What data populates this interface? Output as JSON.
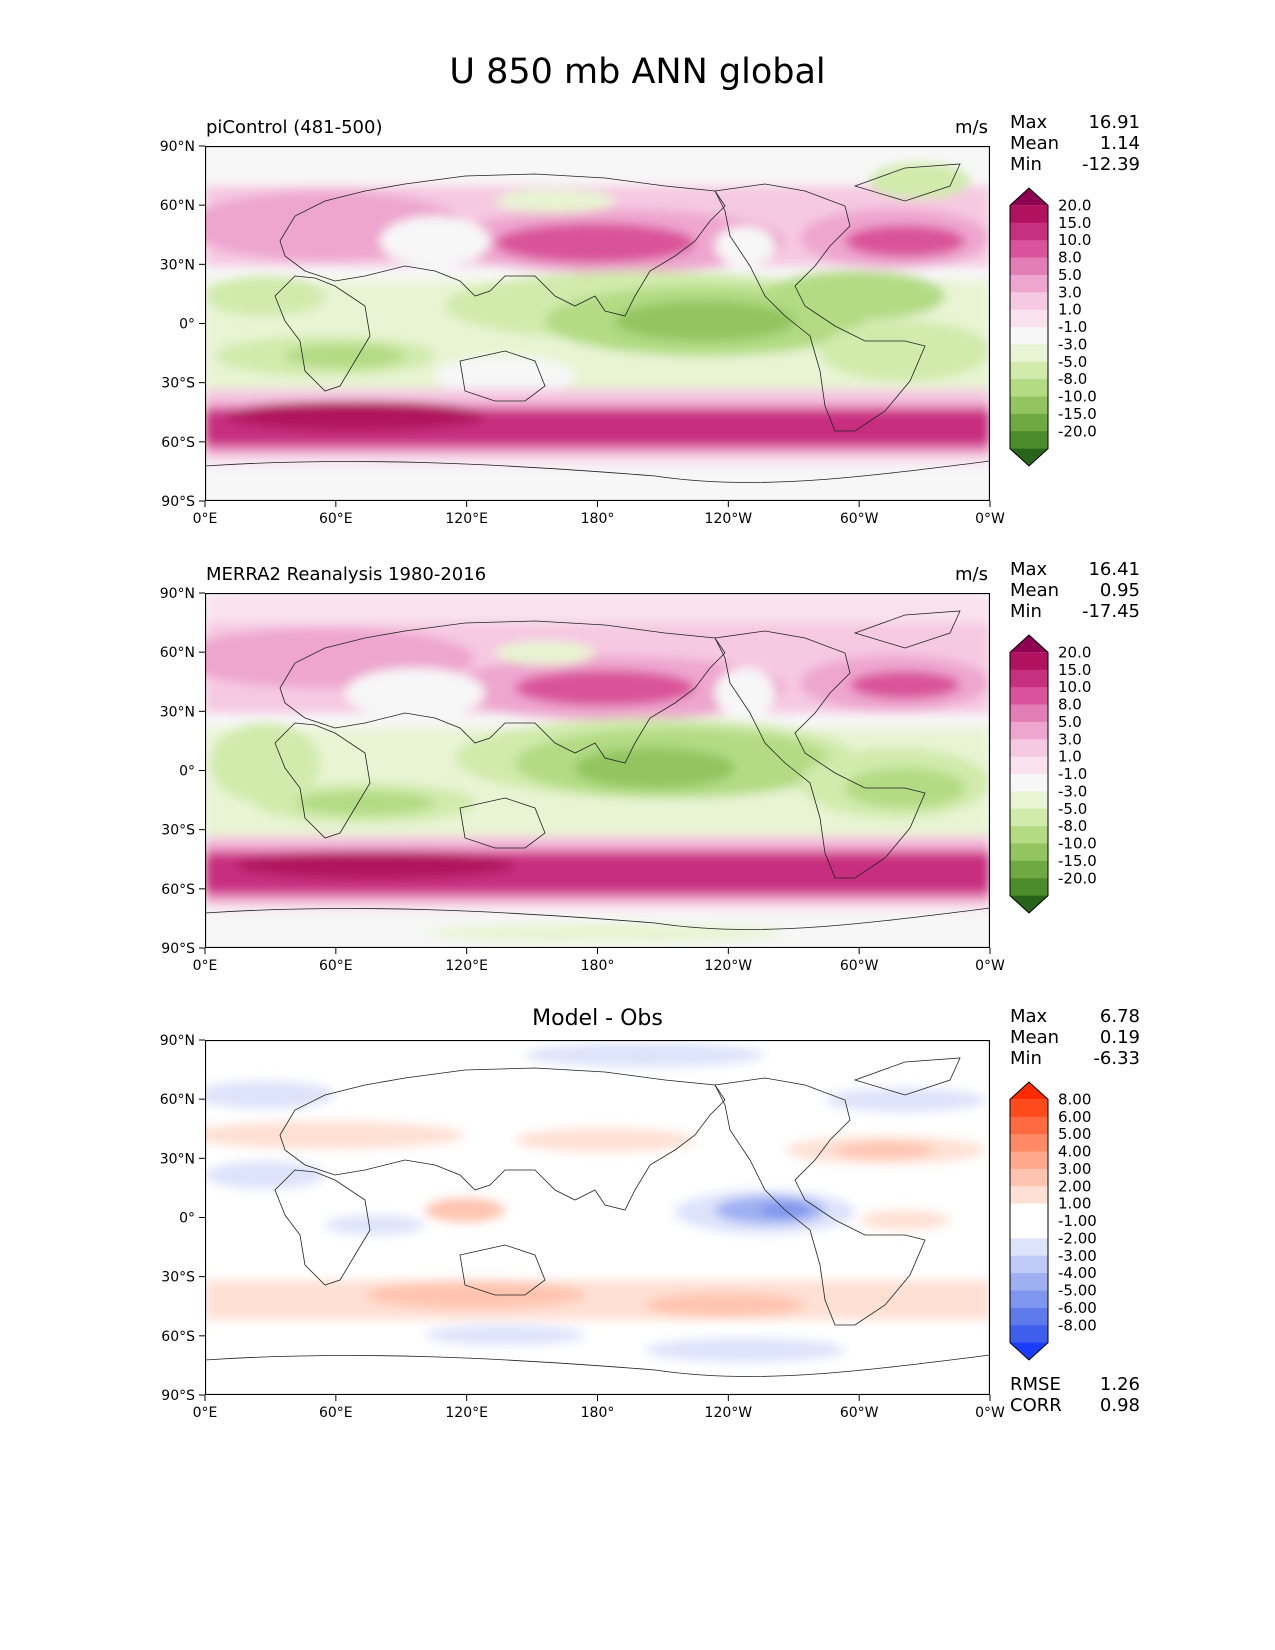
{
  "title": "U 850 mb ANN global",
  "lat_ticks": [
    "90°N",
    "60°N",
    "30°N",
    "0°",
    "30°S",
    "60°S",
    "90°S"
  ],
  "lon_ticks": [
    "0°E",
    "60°E",
    "120°E",
    "180°",
    "120°W",
    "60°W",
    "0°W"
  ],
  "panels": [
    {
      "id": "test",
      "title": "piControl (481-500)",
      "units": "m/s",
      "stats": [
        {
          "label": "Max",
          "value": "16.91"
        },
        {
          "label": "Mean",
          "value": "1.14"
        },
        {
          "label": "Min",
          "value": "-12.39"
        }
      ],
      "colorbar": {
        "labels": [
          "20.0",
          "15.0",
          "10.0",
          "8.0",
          "5.0",
          "3.0",
          "1.0",
          "-1.0",
          "-3.0",
          "-5.0",
          "-8.0",
          "-10.0",
          "-15.0",
          "-20.0"
        ],
        "colors": [
          "#8e0152",
          "#b0125f",
          "#c72f7f",
          "#d9529b",
          "#e27db6",
          "#eea6cf",
          "#f6c9e2",
          "#f9e2ee",
          "#f7f7f7",
          "#e8f4d3",
          "#d0ebac",
          "#b2db84",
          "#92c45f",
          "#6fa942",
          "#4d8c2a",
          "#276419"
        ]
      }
    },
    {
      "id": "reference",
      "title": "MERRA2 Reanalysis 1980-2016",
      "units": "m/s",
      "stats": [
        {
          "label": "Max",
          "value": "16.41"
        },
        {
          "label": "Mean",
          "value": "0.95"
        },
        {
          "label": "Min",
          "value": "-17.45"
        }
      ],
      "colorbar": {
        "labels": [
          "20.0",
          "15.0",
          "10.0",
          "8.0",
          "5.0",
          "3.0",
          "1.0",
          "-1.0",
          "-3.0",
          "-5.0",
          "-8.0",
          "-10.0",
          "-15.0",
          "-20.0"
        ],
        "colors": [
          "#8e0152",
          "#b0125f",
          "#c72f7f",
          "#d9529b",
          "#e27db6",
          "#eea6cf",
          "#f6c9e2",
          "#f9e2ee",
          "#f7f7f7",
          "#e8f4d3",
          "#d0ebac",
          "#b2db84",
          "#92c45f",
          "#6fa942",
          "#4d8c2a",
          "#276419"
        ]
      }
    },
    {
      "id": "diff",
      "title": "Model - Obs",
      "units": "",
      "stats": [
        {
          "label": "Max",
          "value": "6.78"
        },
        {
          "label": "Mean",
          "value": "0.19"
        },
        {
          "label": "Min",
          "value": "-6.33"
        }
      ],
      "extra_stats": [
        {
          "label": "RMSE",
          "value": "1.26"
        },
        {
          "label": "CORR",
          "value": "0.98"
        }
      ],
      "colorbar": {
        "labels": [
          "8.00",
          "6.00",
          "5.00",
          "4.00",
          "3.00",
          "2.00",
          "1.00",
          "-1.00",
          "-2.00",
          "-3.00",
          "-4.00",
          "-5.00",
          "-6.00",
          "-8.00"
        ],
        "colors": [
          "#ff2a00",
          "#ff4a1c",
          "#ff6a40",
          "#ff8a66",
          "#ffa88c",
          "#ffc4b0",
          "#ffe0d4",
          "#ffffff",
          "#ffffff",
          "#dde3fb",
          "#bfcaf7",
          "#9fb0f2",
          "#7f96ee",
          "#5f7aea",
          "#3f5eee",
          "#1a3cff"
        ]
      }
    }
  ]
}
